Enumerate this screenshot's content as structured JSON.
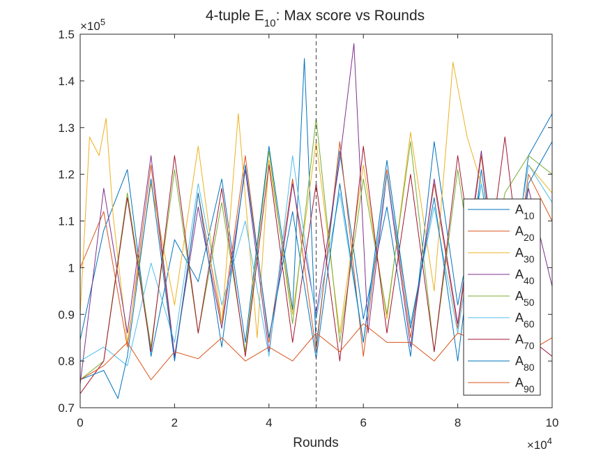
{
  "chart_data": {
    "type": "line",
    "title": {
      "main": "4-tuple E",
      "sub": "10",
      "rest": ": Max score vs Rounds"
    },
    "xlabel": "Rounds",
    "ylabel": "",
    "xlim": [
      0,
      100000
    ],
    "ylim": [
      70000,
      150000
    ],
    "x_ticks": [
      0,
      20000,
      40000,
      60000,
      80000,
      100000
    ],
    "x_tick_labels": [
      "0",
      "2",
      "4",
      "6",
      "8",
      "10"
    ],
    "y_ticks": [
      70000,
      80000,
      90000,
      100000,
      110000,
      120000,
      130000,
      140000,
      150000
    ],
    "y_tick_labels": [
      "0.7",
      "0.8",
      "0.9",
      "1",
      "1.1",
      "1.2",
      "1.3",
      "1.4",
      "1.5"
    ],
    "x_multiplier": {
      "base": "×10",
      "exp": "4"
    },
    "y_multiplier": {
      "base": "×10",
      "exp": "5"
    },
    "grid": false,
    "vline_x": 50000,
    "legend_position": "east-inside",
    "series": [
      {
        "name": {
          "base": "A",
          "sub": "10"
        },
        "color": "#0072BD",
        "x": [
          0,
          5000,
          10000,
          15000,
          20000,
          25000,
          30000,
          35000,
          40000,
          45000,
          47500,
          50000,
          55000,
          60000,
          65000,
          70000,
          75000,
          80000,
          85000,
          90000,
          95000,
          100000
        ],
        "y": [
          84500,
          108000,
          121000,
          81000,
          106000,
          97000,
          119000,
          84000,
          126000,
          91000,
          144800,
          83000,
          125000,
          89000,
          113000,
          81000,
          127000,
          92000,
          118000,
          86000,
          124000,
          133000
        ]
      },
      {
        "name": {
          "base": "A",
          "sub": "20"
        },
        "color": "#D95319",
        "x": [
          0,
          5000,
          10000,
          15000,
          20000,
          25000,
          30000,
          35000,
          40000,
          45000,
          50000,
          55000,
          60000,
          65000,
          70000,
          75000,
          80000,
          85000,
          90000,
          95000,
          100000
        ],
        "y": [
          100000,
          112000,
          83000,
          122000,
          80500,
          116000,
          88000,
          124000,
          84000,
          119000,
          82000,
          127000,
          81000,
          121000,
          85000,
          118000,
          87000,
          124000,
          83000,
          120000,
          110000
        ]
      },
      {
        "name": {
          "base": "A",
          "sub": "30"
        },
        "color": "#EDB120",
        "x": [
          0,
          2000,
          4000,
          5500,
          7000,
          10000,
          15000,
          20000,
          25000,
          30000,
          33500,
          37500,
          40000,
          45000,
          50000,
          55000,
          60000,
          65000,
          70000,
          75000,
          79000,
          82000,
          85000,
          90000,
          95000,
          100000
        ],
        "y": [
          90000,
          128000,
          124000,
          132000,
          111000,
          84000,
          118000,
          92000,
          126000,
          88000,
          133000,
          85000,
          123000,
          90000,
          127000,
          86000,
          122000,
          89000,
          129000,
          95000,
          144000,
          128000,
          118000,
          91000,
          122000,
          116000
        ]
      },
      {
        "name": {
          "base": "A",
          "sub": "40"
        },
        "color": "#7E2F8E",
        "x": [
          0,
          5000,
          10000,
          15000,
          20000,
          25000,
          30000,
          35000,
          40000,
          45000,
          50000,
          55000,
          58000,
          61000,
          65000,
          70000,
          75000,
          80000,
          85000,
          90000,
          95000,
          100000
        ],
        "y": [
          75000,
          117000,
          86000,
          124000,
          81000,
          113000,
          87000,
          121000,
          82000,
          118000,
          90000,
          123000,
          148000,
          86000,
          120000,
          83000,
          119000,
          88000,
          125000,
          84000,
          117000,
          96000
        ]
      },
      {
        "name": {
          "base": "A",
          "sub": "50"
        },
        "color": "#77AC30",
        "x": [
          0,
          5000,
          10000,
          15000,
          20000,
          25000,
          30000,
          35000,
          40000,
          45000,
          50000,
          55000,
          60000,
          65000,
          70000,
          75000,
          80000,
          85000,
          90000,
          95000,
          100000
        ],
        "y": [
          76000,
          80000,
          116000,
          83000,
          121000,
          86000,
          114000,
          82000,
          125000,
          88000,
          132000,
          84000,
          119000,
          90000,
          127000,
          82000,
          121000,
          87000,
          116000,
          124000,
          120000
        ]
      },
      {
        "name": {
          "base": "A",
          "sub": "60"
        },
        "color": "#4DBEEE",
        "x": [
          0,
          5000,
          10000,
          15000,
          20000,
          25000,
          30000,
          35000,
          40000,
          45000,
          50000,
          55000,
          60000,
          65000,
          70000,
          75000,
          80000,
          85000,
          90000,
          95000,
          100000
        ],
        "y": [
          80000,
          83000,
          79000,
          101000,
          84000,
          118000,
          92000,
          110000,
          81000,
          124000,
          89000,
          116000,
          84000,
          120000,
          88000,
          113000,
          86000,
          118000,
          90000,
          122000,
          114000
        ]
      },
      {
        "name": {
          "base": "A",
          "sub": "70"
        },
        "color": "#A2142F",
        "x": [
          0,
          5000,
          10000,
          15000,
          20000,
          25000,
          30000,
          35000,
          40000,
          45000,
          50000,
          55000,
          60000,
          65000,
          70000,
          75000,
          80000,
          85000,
          90000,
          95000,
          100000
        ],
        "y": [
          73000,
          80000,
          115000,
          82000,
          124000,
          86000,
          117000,
          81000,
          122000,
          84000,
          118000,
          80000,
          126000,
          86000,
          120000,
          82000,
          124000,
          89000,
          128000,
          85000,
          81000
        ]
      },
      {
        "name": {
          "base": "A",
          "sub": "80"
        },
        "color": "#0072BD",
        "x": [
          0,
          5000,
          8000,
          10000,
          15000,
          20000,
          25000,
          30000,
          35000,
          40000,
          45000,
          50000,
          55000,
          60000,
          65000,
          70000,
          75000,
          80000,
          85000,
          90000,
          95000,
          100000
        ],
        "y": [
          76000,
          78000,
          72000,
          81000,
          119000,
          80000,
          116000,
          83000,
          122000,
          85000,
          112000,
          80500,
          118000,
          84000,
          123000,
          87000,
          115000,
          80000,
          121000,
          86000,
          118000,
          127000
        ]
      },
      {
        "name": {
          "base": "A",
          "sub": "90"
        },
        "color": "#D95319",
        "x": [
          0,
          5000,
          10000,
          15000,
          20000,
          25000,
          30000,
          35000,
          40000,
          45000,
          50000,
          55000,
          60000,
          65000,
          70000,
          75000,
          80000,
          85000,
          90000,
          95000,
          100000
        ],
        "y": [
          76000,
          79000,
          84000,
          76000,
          82000,
          80500,
          85000,
          80000,
          83000,
          80000,
          86000,
          82000,
          88000,
          84000,
          84000,
          80000,
          86000,
          84000,
          88000,
          82000,
          85000
        ]
      }
    ]
  }
}
